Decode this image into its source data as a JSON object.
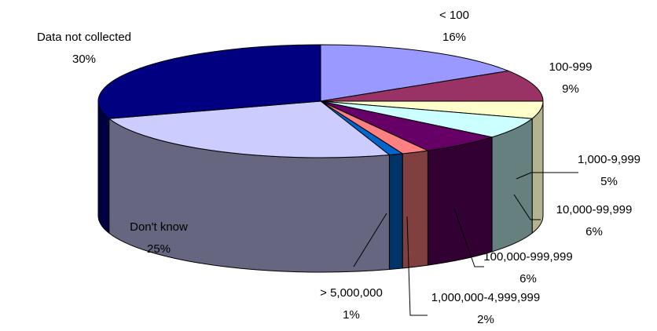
{
  "chart_data": {
    "type": "pie",
    "style": "3d",
    "title": "",
    "slices": [
      {
        "label": "< 100",
        "value": 16,
        "value_label": "16%",
        "color": "#9999ff",
        "side_color": "#6b6bb3"
      },
      {
        "label": "100-999",
        "value": 9,
        "value_label": "9%",
        "color": "#993366",
        "side_color": "#6b2447"
      },
      {
        "label": "1,000-9,999",
        "value": 5,
        "value_label": "5%",
        "color": "#ffffcc",
        "side_color": "#b3b38f"
      },
      {
        "label": "10,000-99,999",
        "value": 6,
        "value_label": "6%",
        "color": "#ccffff",
        "side_color": "#668080"
      },
      {
        "label": "100,000-999,999",
        "value": 6,
        "value_label": "6%",
        "color": "#660066",
        "side_color": "#330033"
      },
      {
        "label": "1,000,000-4,999,999",
        "value": 2,
        "value_label": "2%",
        "color": "#ff8080",
        "side_color": "#804040"
      },
      {
        "label": "> 5,000,000",
        "value": 1,
        "value_label": "1%",
        "color": "#0066cc",
        "side_color": "#003366"
      },
      {
        "label": "Don't know",
        "value": 25,
        "value_label": "25%",
        "color": "#ccccff",
        "side_color": "#666680"
      },
      {
        "label": "Data not collected",
        "value": 30,
        "value_label": "30%",
        "color": "#000080",
        "side_color": "#000040"
      }
    ]
  }
}
